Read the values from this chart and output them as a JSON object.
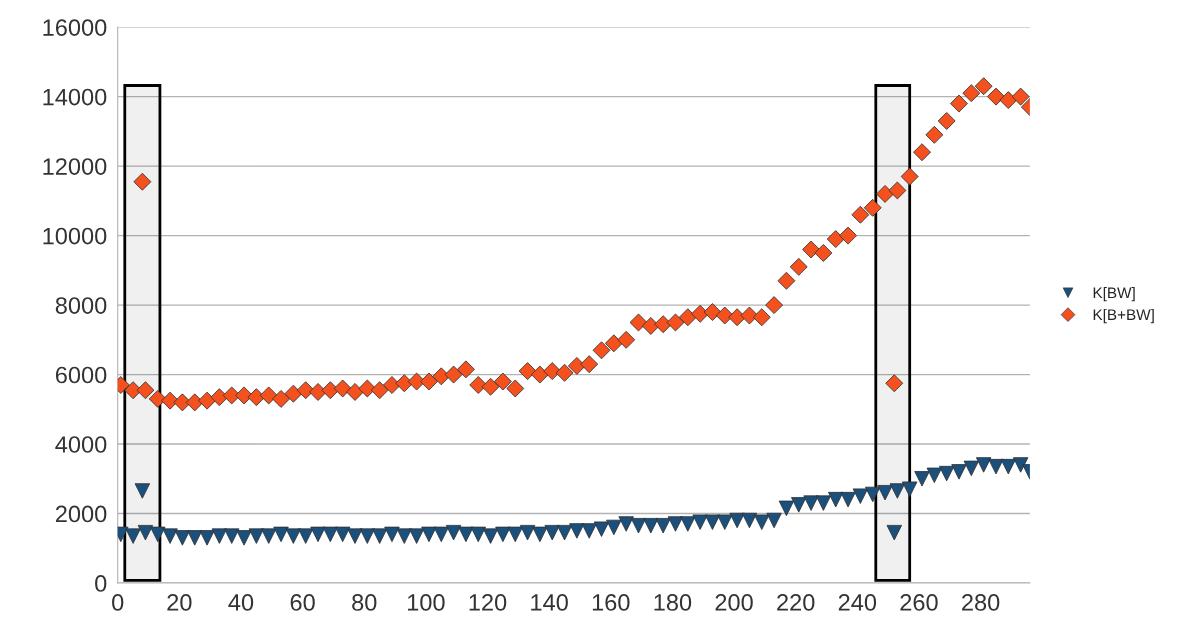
{
  "chart_data": {
    "type": "scatter",
    "xlim": [
      0,
      296
    ],
    "xticks": [
      0,
      20,
      40,
      60,
      80,
      100,
      120,
      140,
      160,
      180,
      200,
      220,
      240,
      260,
      280
    ],
    "ylim": [
      0,
      16000
    ],
    "yticks": [
      0,
      2000,
      4000,
      6000,
      8000,
      10000,
      12000,
      14000,
      16000
    ],
    "grid": "y",
    "legend": "right",
    "bands": [
      {
        "axis": "x",
        "from": 2.3,
        "to": 13.7,
        "color": "#000000"
      },
      {
        "axis": "x",
        "from": 246,
        "to": 257,
        "color": "#000000"
      }
    ],
    "series": [
      {
        "name": "K[BW]",
        "color": "#1b4f7c",
        "marker": "triangle",
        "x": [
          1,
          5,
          8,
          9,
          13,
          17,
          21,
          25,
          29,
          33,
          37,
          41,
          45,
          49,
          53,
          57,
          61,
          65,
          69,
          73,
          77,
          81,
          85,
          89,
          93,
          97,
          101,
          105,
          109,
          113,
          117,
          121,
          125,
          129,
          133,
          137,
          141,
          145,
          149,
          153,
          157,
          161,
          165,
          169,
          173,
          177,
          181,
          185,
          189,
          193,
          197,
          201,
          205,
          209,
          213,
          217,
          221,
          225,
          229,
          233,
          237,
          241,
          245,
          249,
          252,
          253,
          257,
          261,
          265,
          269,
          273,
          277,
          281,
          285,
          289,
          293,
          296
        ],
        "values": [
          1400,
          1350,
          2650,
          1450,
          1400,
          1350,
          1300,
          1300,
          1300,
          1350,
          1350,
          1300,
          1350,
          1350,
          1400,
          1350,
          1350,
          1400,
          1400,
          1400,
          1350,
          1350,
          1350,
          1400,
          1350,
          1350,
          1400,
          1400,
          1450,
          1400,
          1400,
          1350,
          1400,
          1400,
          1450,
          1400,
          1450,
          1450,
          1500,
          1500,
          1550,
          1600,
          1700,
          1650,
          1650,
          1650,
          1700,
          1700,
          1750,
          1750,
          1750,
          1800,
          1800,
          1750,
          1800,
          2150,
          2250,
          2300,
          2300,
          2400,
          2400,
          2500,
          2550,
          2600,
          1450,
          2650,
          2700,
          3000,
          3100,
          3150,
          3200,
          3300,
          3400,
          3350,
          3350,
          3400,
          3200
        ]
      },
      {
        "name": "K[B+BW]",
        "color": "#f5511e",
        "marker": "diamond",
        "x": [
          1,
          5,
          8,
          9,
          13,
          17,
          21,
          25,
          29,
          33,
          37,
          41,
          45,
          49,
          53,
          57,
          61,
          65,
          69,
          73,
          77,
          81,
          85,
          89,
          93,
          97,
          101,
          105,
          109,
          113,
          117,
          121,
          125,
          129,
          133,
          137,
          141,
          145,
          149,
          153,
          157,
          161,
          165,
          169,
          173,
          177,
          181,
          185,
          189,
          193,
          197,
          201,
          205,
          209,
          213,
          217,
          221,
          225,
          229,
          233,
          237,
          241,
          245,
          249,
          252,
          253,
          257,
          261,
          265,
          269,
          273,
          277,
          281,
          285,
          289,
          293,
          296
        ],
        "values": [
          5700,
          5550,
          11550,
          5550,
          5300,
          5250,
          5200,
          5200,
          5250,
          5350,
          5400,
          5400,
          5350,
          5400,
          5300,
          5450,
          5550,
          5500,
          5550,
          5600,
          5500,
          5600,
          5550,
          5700,
          5750,
          5800,
          5800,
          5950,
          6000,
          6150,
          5700,
          5650,
          5800,
          5600,
          6100,
          6000,
          6100,
          6050,
          6250,
          6300,
          6700,
          6900,
          7000,
          7500,
          7400,
          7450,
          7500,
          7650,
          7750,
          7800,
          7700,
          7650,
          7700,
          7650,
          8000,
          8700,
          9100,
          9600,
          9500,
          9900,
          10000,
          10600,
          10800,
          11200,
          5750,
          11300,
          11700,
          12400,
          12900,
          13300,
          13800,
          14100,
          14300,
          14000,
          13900,
          14000,
          13700
        ]
      }
    ]
  }
}
